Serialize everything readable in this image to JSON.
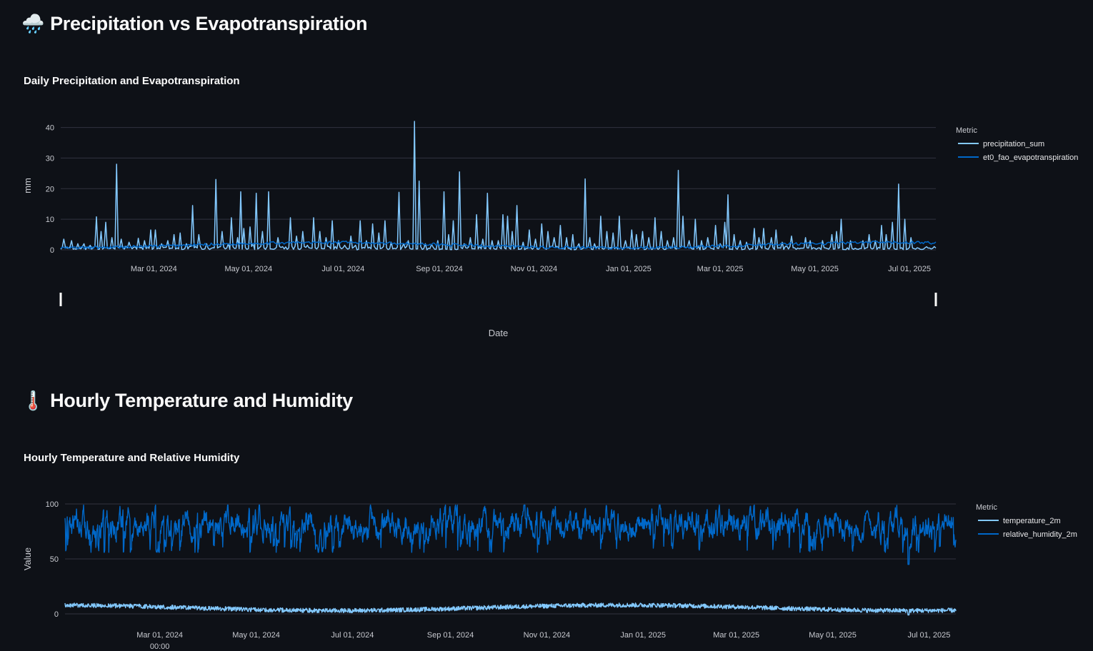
{
  "sections": [
    {
      "title": "Precipitation vs Evapotranspiration",
      "icon": "rain-cloud-icon",
      "emoji": "🌧️"
    },
    {
      "title": "Hourly Temperature and Humidity",
      "icon": "thermometer-icon",
      "emoji": "🌡️"
    }
  ],
  "colors": {
    "background": "#0e1117",
    "grid": "#31333f",
    "light_blue": "#83c9ff",
    "dark_blue": "#0068c9"
  },
  "chart_data": [
    {
      "type": "line",
      "title": "Daily Precipitation and Evapotranspiration",
      "xlabel": "Date",
      "ylabel": "mm",
      "x_range": [
        "2024-01-01",
        "2025-07-18"
      ],
      "ylim": [
        0,
        42
      ],
      "y_ticks": [
        0,
        10,
        20,
        30,
        40
      ],
      "x_ticks": [
        "Mar 01, 2024",
        "May 01, 2024",
        "Jul 01, 2024",
        "Sep 01, 2024",
        "Nov 01, 2024",
        "Jan 01, 2025",
        "Mar 01, 2025",
        "May 01, 2025",
        "Jul 01, 2025"
      ],
      "legend_title": "Metric",
      "legend_position": "right",
      "grid": true,
      "range_slider": true,
      "series": [
        {
          "name": "precipitation_sum",
          "color": "#83c9ff",
          "peaks": [
            [
              "2024-01-03",
              3.5
            ],
            [
              "2024-01-08",
              3
            ],
            [
              "2024-01-12",
              2
            ],
            [
              "2024-01-16",
              2
            ],
            [
              "2024-01-20",
              1.5
            ],
            [
              "2024-01-24",
              10.8
            ],
            [
              "2024-01-27",
              6
            ],
            [
              "2024-01-30",
              9
            ],
            [
              "2024-02-03",
              4
            ],
            [
              "2024-02-06",
              28
            ],
            [
              "2024-02-09",
              3.5
            ],
            [
              "2024-02-14",
              2.5
            ],
            [
              "2024-02-20",
              3.8
            ],
            [
              "2024-02-24",
              3
            ],
            [
              "2024-02-28",
              6.5
            ],
            [
              "2024-03-02",
              6.5
            ],
            [
              "2024-03-06",
              2
            ],
            [
              "2024-03-10",
              3
            ],
            [
              "2024-03-14",
              5
            ],
            [
              "2024-03-18",
              5.5
            ],
            [
              "2024-03-22",
              2
            ],
            [
              "2024-03-26",
              14.5
            ],
            [
              "2024-03-30",
              5
            ],
            [
              "2024-04-04",
              2
            ],
            [
              "2024-04-10",
              23
            ],
            [
              "2024-04-14",
              6
            ],
            [
              "2024-04-18",
              2
            ],
            [
              "2024-04-20",
              10.5
            ],
            [
              "2024-04-24",
              4
            ],
            [
              "2024-04-26",
              19
            ],
            [
              "2024-04-28",
              7
            ],
            [
              "2024-05-02",
              7.5
            ],
            [
              "2024-05-04",
              2
            ],
            [
              "2024-05-06",
              18.5
            ],
            [
              "2024-05-10",
              6
            ],
            [
              "2024-05-14",
              19
            ],
            [
              "2024-05-20",
              4
            ],
            [
              "2024-05-28",
              10.5
            ],
            [
              "2024-06-01",
              4.5
            ],
            [
              "2024-06-05",
              6
            ],
            [
              "2024-06-08",
              1.5
            ],
            [
              "2024-06-12",
              10.5
            ],
            [
              "2024-06-16",
              6
            ],
            [
              "2024-06-20",
              4
            ],
            [
              "2024-06-24",
              9.5
            ],
            [
              "2024-06-28",
              3
            ],
            [
              "2024-07-02",
              1.5
            ],
            [
              "2024-07-06",
              4.5
            ],
            [
              "2024-07-09",
              1.5
            ],
            [
              "2024-07-12",
              9.5
            ],
            [
              "2024-07-16",
              3
            ],
            [
              "2024-07-20",
              8.5
            ],
            [
              "2024-07-24",
              5.5
            ],
            [
              "2024-07-28",
              9.5
            ],
            [
              "2024-08-01",
              2.5
            ],
            [
              "2024-08-06",
              18.8
            ],
            [
              "2024-08-09",
              2
            ],
            [
              "2024-08-12",
              3
            ],
            [
              "2024-08-16",
              42
            ],
            [
              "2024-08-19",
              22.5
            ],
            [
              "2024-08-23",
              2
            ],
            [
              "2024-08-27",
              1.8
            ],
            [
              "2024-08-31",
              3
            ],
            [
              "2024-09-04",
              19
            ],
            [
              "2024-09-07",
              5
            ],
            [
              "2024-09-10",
              9.5
            ],
            [
              "2024-09-14",
              25.5
            ],
            [
              "2024-09-17",
              2
            ],
            [
              "2024-09-21",
              4
            ],
            [
              "2024-09-25",
              11.5
            ],
            [
              "2024-09-29",
              3.5
            ],
            [
              "2024-10-02",
              18.5
            ],
            [
              "2024-10-05",
              3
            ],
            [
              "2024-10-09",
              3
            ],
            [
              "2024-10-12",
              11.5
            ],
            [
              "2024-10-15",
              11
            ],
            [
              "2024-10-18",
              6
            ],
            [
              "2024-10-21",
              14.5
            ],
            [
              "2024-10-25",
              2.5
            ],
            [
              "2024-10-29",
              6.5
            ],
            [
              "2024-11-02",
              3.5
            ],
            [
              "2024-11-06",
              8.5
            ],
            [
              "2024-11-10",
              6
            ],
            [
              "2024-11-14",
              4
            ],
            [
              "2024-11-18",
              8
            ],
            [
              "2024-11-22",
              4
            ],
            [
              "2024-11-26",
              5
            ],
            [
              "2024-11-30",
              2
            ],
            [
              "2024-12-04",
              23.2
            ],
            [
              "2024-12-07",
              4
            ],
            [
              "2024-12-10",
              2
            ],
            [
              "2024-12-14",
              11
            ],
            [
              "2024-12-18",
              6
            ],
            [
              "2024-12-22",
              5.5
            ],
            [
              "2024-12-26",
              11
            ],
            [
              "2024-12-30",
              3
            ],
            [
              "2025-01-03",
              6.5
            ],
            [
              "2025-01-06",
              5
            ],
            [
              "2025-01-10",
              6
            ],
            [
              "2025-01-14",
              4
            ],
            [
              "2025-01-18",
              10.5
            ],
            [
              "2025-01-22",
              6
            ],
            [
              "2025-01-26",
              3
            ],
            [
              "2025-01-30",
              4
            ],
            [
              "2025-02-02",
              26
            ],
            [
              "2025-02-05",
              11
            ],
            [
              "2025-02-09",
              3
            ],
            [
              "2025-02-13",
              10
            ],
            [
              "2025-02-17",
              3
            ],
            [
              "2025-02-21",
              4
            ],
            [
              "2025-02-26",
              8
            ],
            [
              "2025-03-01",
              2
            ],
            [
              "2025-03-04",
              9
            ],
            [
              "2025-03-06",
              18
            ],
            [
              "2025-03-10",
              5
            ],
            [
              "2025-03-14",
              3
            ],
            [
              "2025-03-18",
              2.5
            ],
            [
              "2025-03-23",
              7
            ],
            [
              "2025-03-26",
              4
            ],
            [
              "2025-03-29",
              7
            ],
            [
              "2025-04-03",
              4
            ],
            [
              "2025-04-06",
              6.5
            ],
            [
              "2025-04-10",
              2.5
            ],
            [
              "2025-04-16",
              4.5
            ],
            [
              "2025-04-25",
              4
            ],
            [
              "2025-04-28",
              3
            ],
            [
              "2025-05-06",
              3
            ],
            [
              "2025-05-12",
              5
            ],
            [
              "2025-05-15",
              6
            ],
            [
              "2025-05-18",
              10
            ],
            [
              "2025-05-24",
              3
            ],
            [
              "2025-06-01",
              3
            ],
            [
              "2025-06-05",
              5
            ],
            [
              "2025-06-09",
              3
            ],
            [
              "2025-06-13",
              8
            ],
            [
              "2025-06-16",
              5
            ],
            [
              "2025-06-20",
              9
            ],
            [
              "2025-06-24",
              21.5
            ],
            [
              "2025-06-28",
              10
            ],
            [
              "2025-07-02",
              4
            ]
          ]
        },
        {
          "name": "et0_fao_evapotranspiration",
          "color": "#0068c9",
          "seasonal": [
            [
              "Jan",
              1.0
            ],
            [
              "Apr",
              2.0
            ],
            [
              "Jul",
              2.5
            ],
            [
              "Oct",
              1.3
            ],
            [
              "Dec",
              0.8
            ]
          ]
        }
      ]
    },
    {
      "type": "line",
      "title": "Hourly Temperature and Relative Humidity",
      "xlabel": "",
      "ylabel": "Value",
      "x_range": [
        "2024-01-01",
        "2025-07-18"
      ],
      "ylim": [
        0,
        100
      ],
      "y_ticks": [
        0,
        50,
        100
      ],
      "x_ticks": [
        "Mar 01, 2024",
        "May 01, 2024",
        "Jul 01, 2024",
        "Sep 01, 2024",
        "Nov 01, 2024",
        "Jan 01, 2025",
        "Mar 01, 2025",
        "May 01, 2025",
        "Jul 01, 2025"
      ],
      "x_tick_sub": "00:00",
      "legend_title": "Metric",
      "legend_position": "right",
      "grid": true,
      "series": [
        {
          "name": "temperature_2m",
          "color": "#83c9ff",
          "approx_range": [
            0,
            10
          ],
          "approx_mean": 6
        },
        {
          "name": "relative_humidity_2m",
          "color": "#0068c9",
          "approx_range": [
            45,
            100
          ],
          "approx_mean": 82
        }
      ]
    }
  ]
}
